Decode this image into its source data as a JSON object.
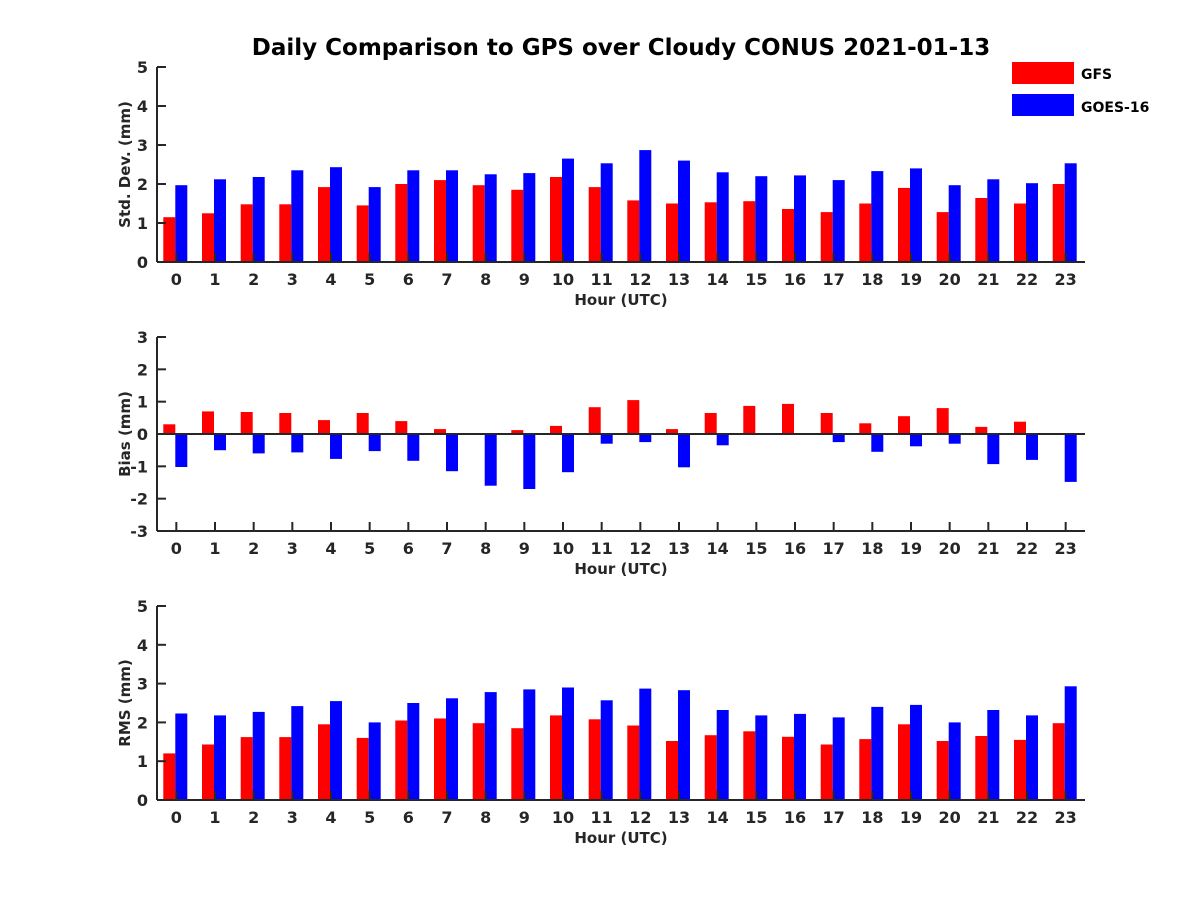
{
  "chart_data": {
    "title": "Daily Comparison to GPS over Cloudy CONUS 2021-01-13",
    "type": "bar",
    "legend": {
      "placement": "top-right",
      "entries": [
        {
          "name": "GFS",
          "color": "#ff0000"
        },
        {
          "name": "GOES-16",
          "color": "#0000ff"
        }
      ]
    },
    "colors": {
      "GFS": "#ff0000",
      "GOES-16": "#0000ff"
    },
    "panels": [
      {
        "ylabel": "Std. Dev. (mm)",
        "xlabel": "Hour (UTC)",
        "ylim": [
          0,
          5
        ],
        "yticks": [
          0,
          1,
          2,
          3,
          4,
          5
        ],
        "categories": [
          0,
          1,
          2,
          3,
          4,
          5,
          6,
          7,
          8,
          9,
          10,
          11,
          12,
          13,
          14,
          15,
          16,
          17,
          18,
          19,
          20,
          21,
          22,
          23
        ],
        "series": [
          {
            "name": "GFS",
            "values": [
              1.15,
              1.25,
              1.48,
              1.48,
              1.92,
              1.45,
              2.0,
              2.1,
              1.97,
              1.85,
              2.18,
              1.92,
              1.58,
              1.5,
              1.53,
              1.56,
              1.36,
              1.28,
              1.5,
              1.9,
              1.28,
              1.64,
              1.5,
              2.0
            ]
          },
          {
            "name": "GOES-16",
            "values": [
              1.97,
              2.12,
              2.18,
              2.35,
              2.43,
              1.92,
              2.35,
              2.35,
              2.25,
              2.28,
              2.65,
              2.53,
              2.87,
              2.6,
              2.3,
              2.2,
              2.22,
              2.1,
              2.33,
              2.4,
              1.97,
              2.12,
              2.02,
              2.53
            ]
          }
        ]
      },
      {
        "ylabel": "Bias (mm)",
        "xlabel": "Hour (UTC)",
        "ylim": [
          -3,
          3
        ],
        "yticks": [
          -3,
          -2,
          -1,
          0,
          1,
          2,
          3
        ],
        "categories": [
          0,
          1,
          2,
          3,
          4,
          5,
          6,
          7,
          8,
          9,
          10,
          11,
          12,
          13,
          14,
          15,
          16,
          17,
          18,
          19,
          20,
          21,
          22,
          23
        ],
        "series": [
          {
            "name": "GFS",
            "values": [
              0.3,
              0.7,
              0.68,
              0.65,
              0.43,
              0.65,
              0.4,
              0.15,
              0.0,
              0.12,
              0.25,
              0.83,
              1.05,
              0.15,
              0.65,
              0.87,
              0.93,
              0.65,
              0.33,
              0.55,
              0.8,
              0.22,
              0.38,
              0.0
            ]
          },
          {
            "name": "GOES-16",
            "values": [
              -1.02,
              -0.5,
              -0.6,
              -0.57,
              -0.77,
              -0.53,
              -0.83,
              -1.15,
              -1.6,
              -1.7,
              -1.18,
              -0.3,
              -0.25,
              -1.03,
              -0.35,
              0.0,
              0.0,
              -0.25,
              -0.55,
              -0.38,
              -0.3,
              -0.93,
              -0.8,
              -1.48
            ]
          }
        ]
      },
      {
        "ylabel": "RMS (mm)",
        "xlabel": "Hour (UTC)",
        "ylim": [
          0,
          5
        ],
        "yticks": [
          0,
          1,
          2,
          3,
          4,
          5
        ],
        "categories": [
          0,
          1,
          2,
          3,
          4,
          5,
          6,
          7,
          8,
          9,
          10,
          11,
          12,
          13,
          14,
          15,
          16,
          17,
          18,
          19,
          20,
          21,
          22,
          23
        ],
        "series": [
          {
            "name": "GFS",
            "values": [
              1.2,
              1.43,
              1.62,
              1.62,
              1.95,
              1.6,
              2.05,
              2.1,
              1.98,
              1.85,
              2.18,
              2.08,
              1.92,
              1.52,
              1.67,
              1.77,
              1.63,
              1.43,
              1.57,
              1.95,
              1.52,
              1.65,
              1.55,
              1.98
            ]
          },
          {
            "name": "GOES-16",
            "values": [
              2.23,
              2.18,
              2.27,
              2.42,
              2.55,
              2.0,
              2.5,
              2.62,
              2.78,
              2.85,
              2.9,
              2.57,
              2.87,
              2.83,
              2.32,
              2.18,
              2.22,
              2.13,
              2.4,
              2.45,
              2.0,
              2.32,
              2.18,
              2.93
            ]
          }
        ]
      }
    ]
  }
}
